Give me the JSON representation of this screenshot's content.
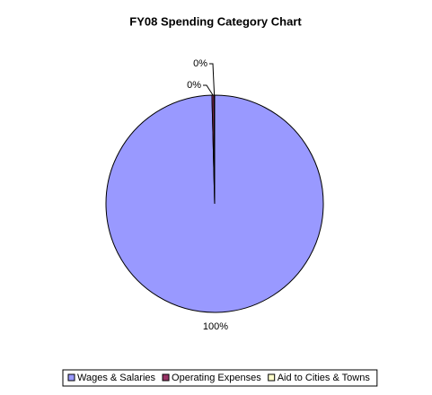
{
  "chart_data": {
    "type": "pie",
    "title": "FY08 Spending Category Chart",
    "categories": [
      "Wages & Salaries",
      "Operating Expenses",
      "Aid to Cities & Towns"
    ],
    "values": [
      99.6,
      0.3,
      0.1
    ],
    "value_labels": [
      "100%",
      "0%",
      "0%"
    ],
    "colors": [
      "#9999ff",
      "#993366",
      "#ffffcc"
    ],
    "legend": "bottom"
  }
}
